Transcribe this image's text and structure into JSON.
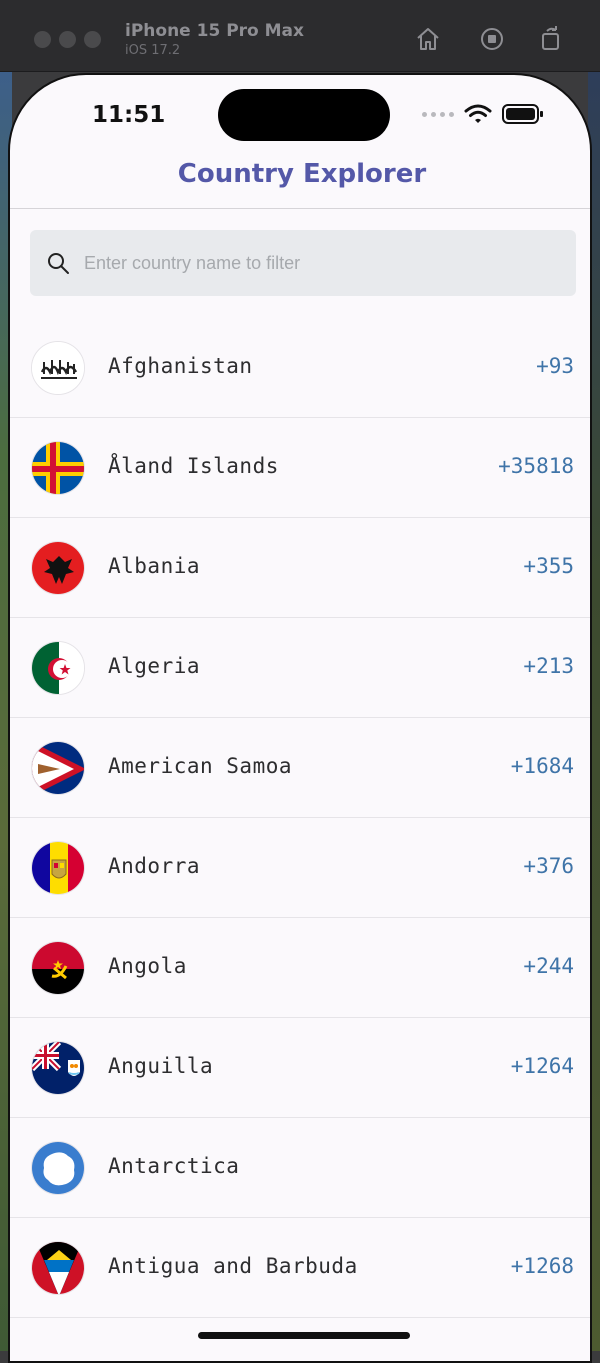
{
  "simulator": {
    "device": "iPhone 15 Pro Max",
    "os": "iOS 17.2"
  },
  "status_bar": {
    "time": "11:51"
  },
  "app": {
    "title": "Country Explorer"
  },
  "search": {
    "placeholder": "Enter country name to filter",
    "value": ""
  },
  "countries": [
    {
      "name": "Afghanistan",
      "code": "+93",
      "flag": "afghanistan-flag"
    },
    {
      "name": "Åland Islands",
      "code": "+35818",
      "flag": "aland-islands-flag"
    },
    {
      "name": "Albania",
      "code": "+355",
      "flag": "albania-flag"
    },
    {
      "name": "Algeria",
      "code": "+213",
      "flag": "algeria-flag"
    },
    {
      "name": "American Samoa",
      "code": "+1684",
      "flag": "american-samoa-flag"
    },
    {
      "name": "Andorra",
      "code": "+376",
      "flag": "andorra-flag"
    },
    {
      "name": "Angola",
      "code": "+244",
      "flag": "angola-flag"
    },
    {
      "name": "Anguilla",
      "code": "+1264",
      "flag": "anguilla-flag"
    },
    {
      "name": "Antarctica",
      "code": "",
      "flag": "antarctica-flag"
    },
    {
      "name": "Antigua and Barbuda",
      "code": "+1268",
      "flag": "antigua-and-barbuda-flag"
    }
  ],
  "colors": {
    "title": "#5458a8",
    "code": "#3f74a8",
    "background": "#fbf9fc"
  }
}
